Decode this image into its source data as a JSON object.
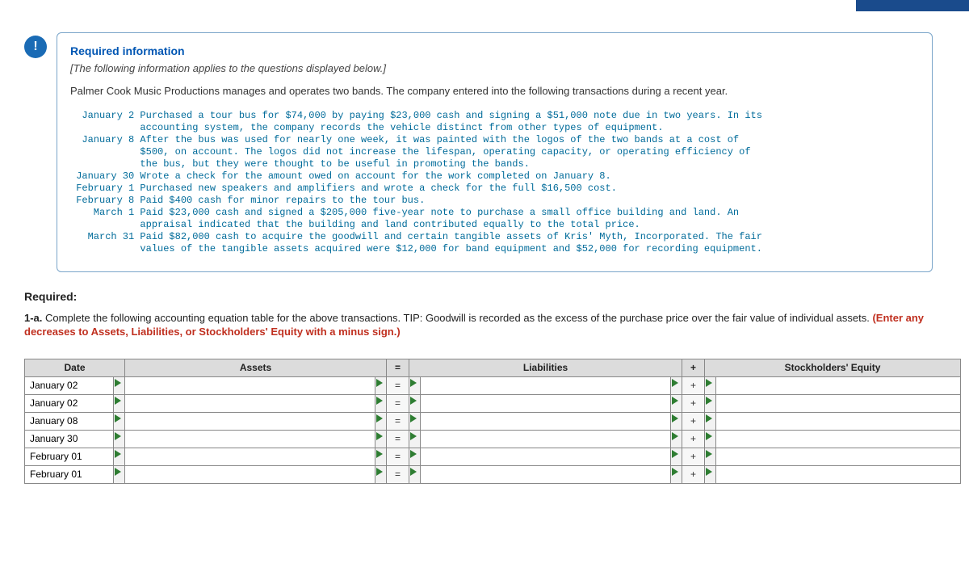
{
  "header": {
    "info_heading": "Required information",
    "italic_note": "[The following information applies to the questions displayed below.]",
    "intro": "Palmer Cook Music Productions manages and operates two bands. The company entered into the following transactions during a recent year."
  },
  "transactions_block": "  January 2 Purchased a tour bus for $74,000 by paying $23,000 cash and signing a $51,000 note due in two years. In its\n            accounting system, the company records the vehicle distinct from other types of equipment.\n  January 8 After the bus was used for nearly one week, it was painted with the logos of the two bands at a cost of\n            $500, on account. The logos did not increase the lifespan, operating capacity, or operating efficiency of\n            the bus, but they were thought to be useful in promoting the bands.\n January 30 Wrote a check for the amount owed on account for the work completed on January 8.\n February 1 Purchased new speakers and amplifiers and wrote a check for the full $16,500 cost.\n February 8 Paid $400 cash for minor repairs to the tour bus.\n    March 1 Paid $23,000 cash and signed a $205,000 five-year note to purchase a small office building and land. An\n            appraisal indicated that the building and land contributed equally to the total price.\n   March 31 Paid $82,000 cash to acquire the goodwill and certain tangible assets of Kris' Myth, Incorporated. The fair\n            values of the tangible assets acquired were $12,000 for band equipment and $52,000 for recording equipment.",
  "required": {
    "label": "Required:",
    "number": "1-a.",
    "text_main": " Complete the following accounting equation table for the above transactions. TIP: Goodwill is recorded as the excess of the purchase price over the fair value of individual assets. ",
    "text_red": "(Enter any decreases to Assets, Liabilities, or Stockholders' Equity with a minus sign.)"
  },
  "table": {
    "columns": {
      "date": "Date",
      "assets": "Assets",
      "eq": "=",
      "liabilities": "Liabilities",
      "plus": "+",
      "se": "Stockholders' Equity"
    },
    "rows": [
      {
        "date": "January 02"
      },
      {
        "date": "January 02"
      },
      {
        "date": "January 08"
      },
      {
        "date": "January 30"
      },
      {
        "date": "February 01"
      },
      {
        "date": "February 01"
      }
    ],
    "op_eq": "=",
    "op_plus": "+"
  },
  "colors": {
    "accent_blue": "#1a6bb5",
    "heading_blue": "#0056b3",
    "mono_text": "#006b9a",
    "warning_red": "#c03020",
    "th_bg": "#dcdcdc",
    "flag_green": "#2e7d32"
  }
}
